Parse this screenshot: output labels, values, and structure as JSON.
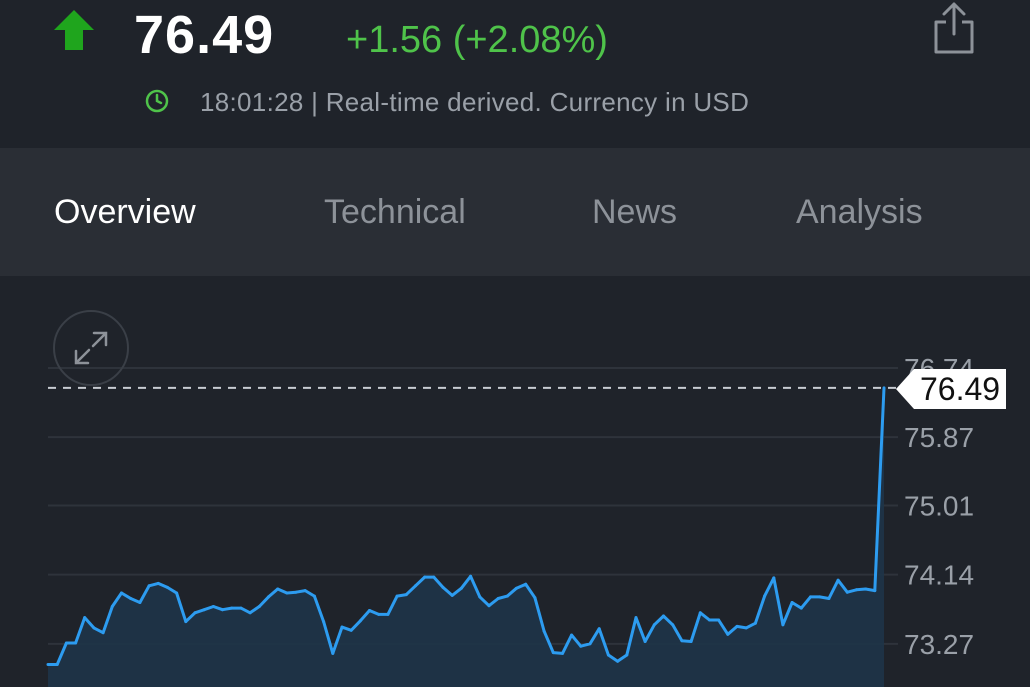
{
  "header": {
    "price": "76.49",
    "change": "+1.56 (+2.08%)",
    "time": "18:01:28",
    "info": "18:01:28 | Real-time derived. Currency in USD",
    "up_color": "#1fa51d",
    "change_color": "#4fc34a"
  },
  "icons": {
    "direction": "up-arrow-icon",
    "share": "share-icon",
    "clock": "clock-icon",
    "expand": "expand-icon"
  },
  "tabs": [
    {
      "label": "Overview",
      "active": true
    },
    {
      "label": "Technical",
      "active": false
    },
    {
      "label": "News",
      "active": false
    },
    {
      "label": "Analysis",
      "active": false
    }
  ],
  "chart_data": {
    "type": "area",
    "y_ticks": [
      "76.74",
      "75.87",
      "75.01",
      "74.14",
      "73.27"
    ],
    "ylim": [
      73.0,
      76.74
    ],
    "last_price_label": "76.49",
    "line_color": "#2d9cf0",
    "grid": true,
    "values": [
      73.01,
      73.01,
      73.28,
      73.28,
      73.6,
      73.47,
      73.41,
      73.74,
      73.91,
      73.84,
      73.79,
      74.0,
      74.03,
      73.98,
      73.91,
      73.55,
      73.66,
      73.7,
      73.74,
      73.7,
      73.72,
      73.72,
      73.66,
      73.74,
      73.86,
      73.96,
      73.91,
      73.92,
      73.94,
      73.87,
      73.55,
      73.15,
      73.48,
      73.44,
      73.56,
      73.69,
      73.64,
      73.64,
      73.87,
      73.89,
      74.0,
      74.11,
      74.11,
      73.98,
      73.88,
      73.97,
      74.12,
      73.86,
      73.75,
      73.84,
      73.87,
      73.97,
      74.02,
      73.85,
      73.43,
      73.16,
      73.15,
      73.38,
      73.24,
      73.27,
      73.46,
      73.13,
      73.05,
      73.13,
      73.6,
      73.3,
      73.51,
      73.62,
      73.51,
      73.31,
      73.3,
      73.66,
      73.57,
      73.57,
      73.39,
      73.49,
      73.47,
      73.53,
      73.87,
      74.1,
      73.51,
      73.79,
      73.72,
      73.86,
      73.86,
      73.84,
      74.07,
      73.92,
      73.95,
      73.96,
      73.94,
      76.49
    ]
  }
}
